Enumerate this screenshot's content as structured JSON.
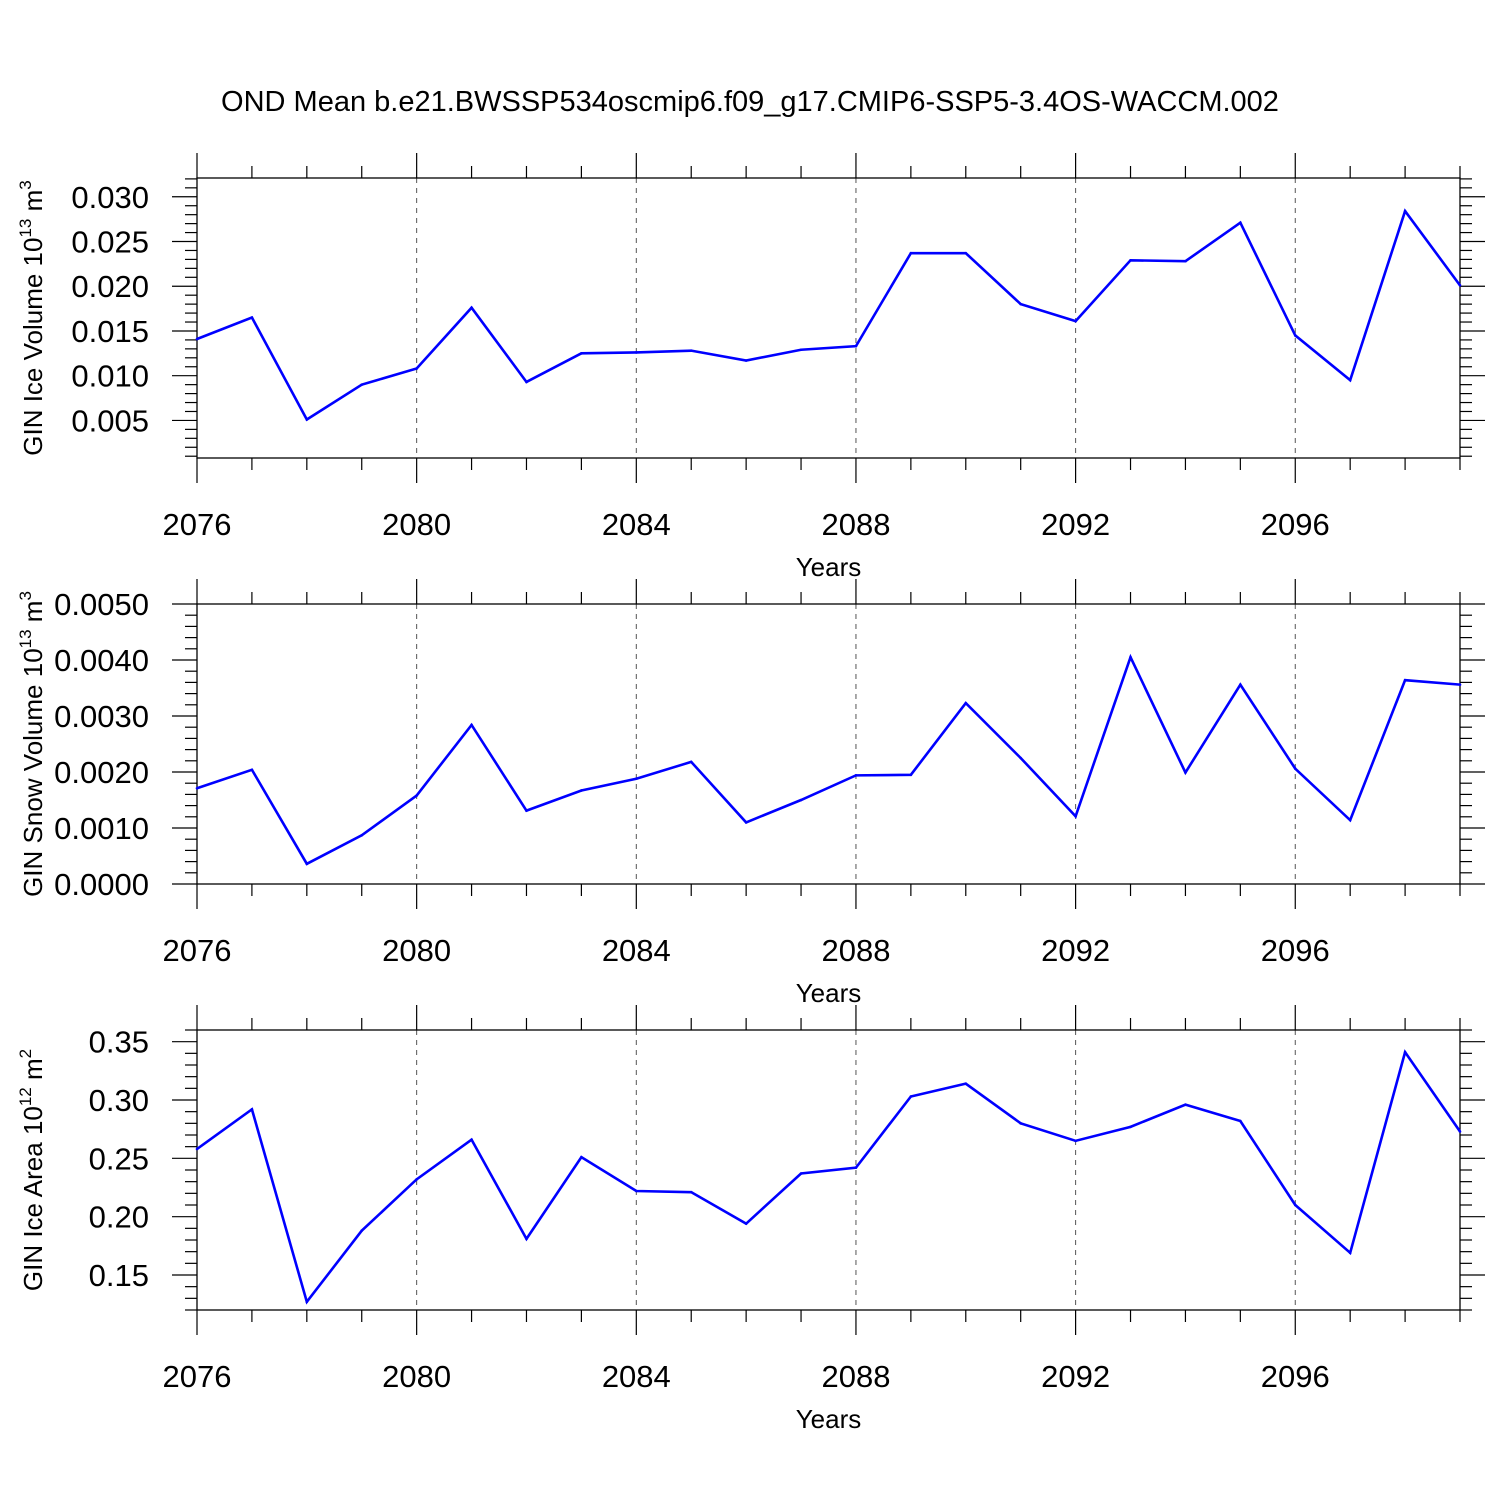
{
  "title": "OND Mean b.e21.BWSSP534oscmip6.f09_g17.CMIP6-SSP5-3.4OS-WACCM.002",
  "colors": {
    "series": "#0000ff",
    "axis": "#000000",
    "grid": "#555555"
  },
  "chart_data": [
    {
      "type": "line",
      "ylabel": "GIN Ice Volume",
      "ylabel_unit_base": "10",
      "ylabel_unit_exp": "13",
      "ylabel_unit_suffix": " m",
      "ylabel_unit_sup2": "3",
      "xlabel": "Years",
      "xlim": [
        2076,
        2099
      ],
      "ylim": [
        0.0008,
        0.0321
      ],
      "xticks": [
        2076,
        2080,
        2084,
        2088,
        2092,
        2096
      ],
      "xtick_labels": [
        "2076",
        "2080",
        "2084",
        "2088",
        "2092",
        "2096"
      ],
      "yticks": [
        0.005,
        0.01,
        0.015,
        0.02,
        0.025,
        0.03
      ],
      "ytick_labels": [
        "0.005",
        "0.010",
        "0.015",
        "0.020",
        "0.025",
        "0.030"
      ],
      "yminor_step": 0.001,
      "x": [
        2076,
        2077,
        2078,
        2079,
        2080,
        2081,
        2082,
        2083,
        2084,
        2085,
        2086,
        2087,
        2088,
        2089,
        2090,
        2091,
        2092,
        2093,
        2094,
        2095,
        2096,
        2097,
        2098,
        2099
      ],
      "values": [
        0.0141,
        0.0165,
        0.0051,
        0.009,
        0.0108,
        0.0176,
        0.0093,
        0.0125,
        0.0126,
        0.0128,
        0.0117,
        0.0129,
        0.0133,
        0.0237,
        0.0237,
        0.018,
        0.0161,
        0.0229,
        0.0228,
        0.0271,
        0.0145,
        0.0095,
        0.0284,
        0.0201
      ]
    },
    {
      "type": "line",
      "ylabel": "GIN Snow Volume",
      "ylabel_unit_base": "10",
      "ylabel_unit_exp": "13",
      "ylabel_unit_suffix": " m",
      "ylabel_unit_sup2": "3",
      "xlabel": "Years",
      "xlim": [
        2076,
        2099
      ],
      "ylim": [
        0.0,
        0.005
      ],
      "xticks": [
        2076,
        2080,
        2084,
        2088,
        2092,
        2096
      ],
      "xtick_labels": [
        "2076",
        "2080",
        "2084",
        "2088",
        "2092",
        "2096"
      ],
      "yticks": [
        0.0,
        0.001,
        0.002,
        0.003,
        0.004,
        0.005
      ],
      "ytick_labels": [
        "0.0000",
        "0.0010",
        "0.0020",
        "0.0030",
        "0.0040",
        "0.0050"
      ],
      "yminor_step": 0.0002,
      "x": [
        2076,
        2077,
        2078,
        2079,
        2080,
        2081,
        2082,
        2083,
        2084,
        2085,
        2086,
        2087,
        2088,
        2089,
        2090,
        2091,
        2092,
        2093,
        2094,
        2095,
        2096,
        2097,
        2098,
        2099
      ],
      "values": [
        0.00171,
        0.00204,
        0.00036,
        0.00087,
        0.00158,
        0.00284,
        0.00131,
        0.00167,
        0.00188,
        0.00218,
        0.0011,
        0.0015,
        0.00194,
        0.00195,
        0.00323,
        0.00225,
        0.00121,
        0.00405,
        0.00199,
        0.00356,
        0.00206,
        0.00114,
        0.00364,
        0.00356
      ]
    },
    {
      "type": "line",
      "ylabel": "GIN Ice Area",
      "ylabel_unit_base": "10",
      "ylabel_unit_exp": "12",
      "ylabel_unit_suffix": " m",
      "ylabel_unit_sup2": "2",
      "xlabel": "Years",
      "xlim": [
        2076,
        2099
      ],
      "ylim": [
        0.12,
        0.36
      ],
      "xticks": [
        2076,
        2080,
        2084,
        2088,
        2092,
        2096
      ],
      "xtick_labels": [
        "2076",
        "2080",
        "2084",
        "2088",
        "2092",
        "2096"
      ],
      "yticks": [
        0.15,
        0.2,
        0.25,
        0.3,
        0.35
      ],
      "ytick_labels": [
        "0.15",
        "0.20",
        "0.25",
        "0.30",
        "0.35"
      ],
      "yminor_step": 0.01,
      "x": [
        2076,
        2077,
        2078,
        2079,
        2080,
        2081,
        2082,
        2083,
        2084,
        2085,
        2086,
        2087,
        2088,
        2089,
        2090,
        2091,
        2092,
        2093,
        2094,
        2095,
        2096,
        2097,
        2098,
        2099
      ],
      "values": [
        0.258,
        0.292,
        0.127,
        0.188,
        0.232,
        0.266,
        0.181,
        0.251,
        0.222,
        0.221,
        0.194,
        0.237,
        0.242,
        0.303,
        0.314,
        0.28,
        0.265,
        0.277,
        0.296,
        0.282,
        0.21,
        0.169,
        0.341,
        0.273
      ]
    }
  ]
}
